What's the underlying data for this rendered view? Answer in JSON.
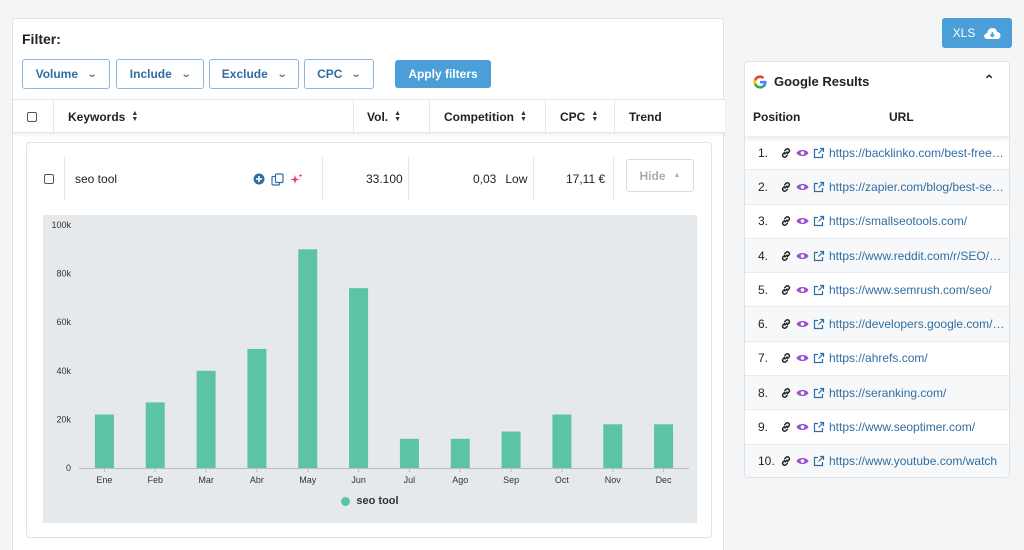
{
  "filter": {
    "title": "Filter:",
    "buttons": [
      "Volume",
      "Include",
      "Exclude",
      "CPC"
    ],
    "apply_label": "Apply filters"
  },
  "table": {
    "headers": {
      "keywords": "Keywords",
      "volume": "Vol.",
      "competition": "Competition",
      "cpc": "CPC",
      "trend": "Trend"
    },
    "row": {
      "keyword": "seo tool",
      "volume": "33.100",
      "competition_value": "0,03",
      "competition_label": "Low",
      "cpc": "17,11 €",
      "hide_label": "Hide"
    }
  },
  "export": {
    "label": "XLS"
  },
  "google": {
    "title": "Google Results",
    "col_position": "Position",
    "col_url": "URL",
    "results": [
      {
        "pos": "1.",
        "url": "https://backlinko.com/best-free-seo-tools"
      },
      {
        "pos": "2.",
        "url": "https://zapier.com/blog/best-seo-tools/"
      },
      {
        "pos": "3.",
        "url": "https://smallseotools.com/"
      },
      {
        "pos": "4.",
        "url": "https://www.reddit.com/r/SEO/comments/"
      },
      {
        "pos": "5.",
        "url": "https://www.semrush.com/seo/"
      },
      {
        "pos": "6.",
        "url": "https://developers.google.com/search/docs"
      },
      {
        "pos": "7.",
        "url": "https://ahrefs.com/"
      },
      {
        "pos": "8.",
        "url": "https://seranking.com/"
      },
      {
        "pos": "9.",
        "url": "https://www.seoptimer.com/"
      },
      {
        "pos": "10.",
        "url": "https://www.youtube.com/watch"
      }
    ]
  },
  "colors": {
    "accent": "#4a9fd8",
    "bar": "#5cc4a4",
    "link": "#2f6ea3"
  },
  "chart_data": {
    "type": "bar",
    "categories": [
      "Ene",
      "Feb",
      "Mar",
      "Abr",
      "May",
      "Jun",
      "Jul",
      "Ago",
      "Sep",
      "Oct",
      "Nov",
      "Dec"
    ],
    "series": [
      {
        "name": "seo tool",
        "values": [
          22000,
          27000,
          40000,
          49000,
          90000,
          74000,
          12000,
          12000,
          15000,
          22000,
          18000,
          18000
        ]
      }
    ],
    "ylim": [
      0,
      100000
    ],
    "yticks": [
      "0",
      "20k",
      "40k",
      "60k",
      "80k",
      "100k"
    ],
    "title": "",
    "xlabel": "",
    "ylabel": ""
  }
}
